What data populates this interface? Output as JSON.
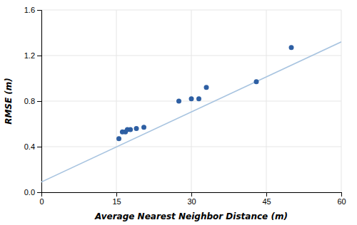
{
  "chart_data": {
    "type": "scatter",
    "xlabel": "Average Nearest Neighbor Distance (m)",
    "ylabel": "RMSE (m)",
    "series": [
      {
        "type": "line",
        "color": "#a8c4e0",
        "x": [
          0,
          60
        ],
        "values": [
          0.09,
          1.32
        ]
      },
      {
        "type": "scatter",
        "color": "#2e5fa3",
        "x": [
          15.5,
          16.2,
          16.8,
          17.2,
          17.8,
          19.0,
          20.5,
          27.5,
          30.0,
          31.5,
          33.0,
          43.0,
          50.0
        ],
        "values": [
          0.47,
          0.53,
          0.53,
          0.55,
          0.55,
          0.56,
          0.57,
          0.8,
          0.82,
          0.82,
          0.92,
          0.97,
          1.27
        ]
      }
    ],
    "xlim": [
      0,
      60
    ],
    "ylim": [
      0,
      1.6
    ],
    "xticks": [
      0,
      15,
      30,
      45,
      60
    ],
    "yticks": [
      {
        "value": 0,
        "label": "0.0"
      },
      0.4,
      0.8,
      1.2,
      1.6
    ],
    "grid": true
  }
}
